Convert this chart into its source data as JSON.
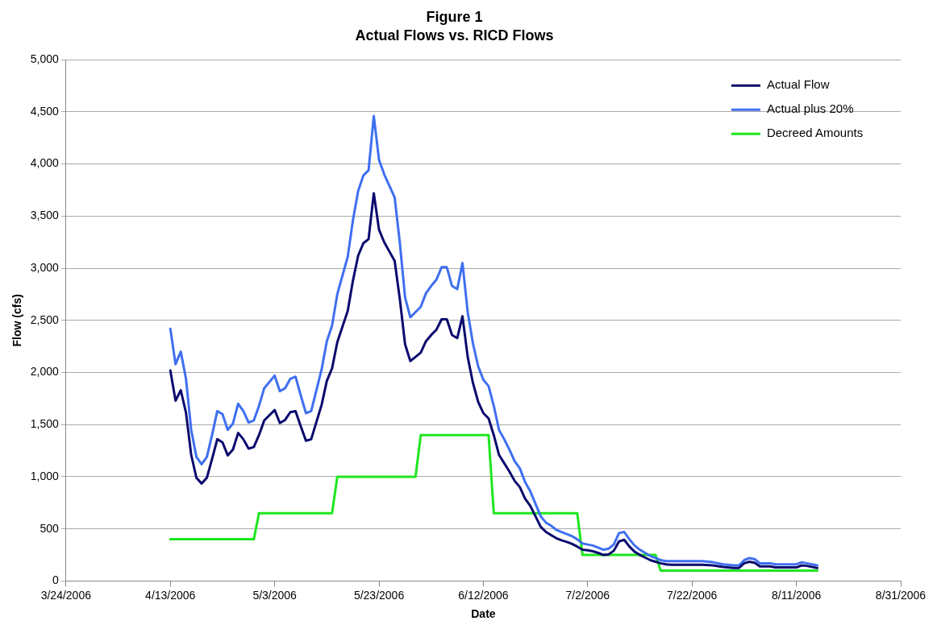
{
  "chart_data": {
    "type": "line",
    "title": "Figure 1",
    "subtitle": "Actual Flows vs. RICD Flows",
    "xlabel": "Date",
    "ylabel": "Flow (cfs)",
    "x": [
      "2006-04-13",
      "2006-04-14",
      "2006-04-15",
      "2006-04-16",
      "2006-04-17",
      "2006-04-18",
      "2006-04-19",
      "2006-04-20",
      "2006-04-21",
      "2006-04-22",
      "2006-04-23",
      "2006-04-24",
      "2006-04-25",
      "2006-04-26",
      "2006-04-27",
      "2006-04-28",
      "2006-04-29",
      "2006-04-30",
      "2006-05-01",
      "2006-05-03",
      "2006-05-04",
      "2006-05-05",
      "2006-05-06",
      "2006-05-07",
      "2006-05-08",
      "2006-05-09",
      "2006-05-10",
      "2006-05-12",
      "2006-05-13",
      "2006-05-14",
      "2006-05-15",
      "2006-05-16",
      "2006-05-17",
      "2006-05-18",
      "2006-05-19",
      "2006-05-20",
      "2006-05-21",
      "2006-05-22",
      "2006-05-23",
      "2006-05-24",
      "2006-05-25",
      "2006-05-26",
      "2006-05-27",
      "2006-05-28",
      "2006-05-29",
      "2006-05-30",
      "2006-05-31",
      "2006-06-01",
      "2006-06-02",
      "2006-06-03",
      "2006-06-04",
      "2006-06-05",
      "2006-06-06",
      "2006-06-07",
      "2006-06-08",
      "2006-06-09",
      "2006-06-10",
      "2006-06-11",
      "2006-06-12",
      "2006-06-13",
      "2006-06-14",
      "2006-06-15",
      "2006-06-16",
      "2006-06-17",
      "2006-06-18",
      "2006-06-19",
      "2006-06-20",
      "2006-06-21",
      "2006-06-22",
      "2006-06-23",
      "2006-06-24",
      "2006-06-25",
      "2006-06-26",
      "2006-06-27",
      "2006-06-28",
      "2006-06-29",
      "2006-06-30",
      "2006-07-01",
      "2006-07-02",
      "2006-07-03",
      "2006-07-04",
      "2006-07-05",
      "2006-07-06",
      "2006-07-07",
      "2006-07-08",
      "2006-07-09",
      "2006-07-10",
      "2006-07-11",
      "2006-07-12",
      "2006-07-13",
      "2006-07-14",
      "2006-07-15",
      "2006-07-16",
      "2006-07-17",
      "2006-07-18",
      "2006-07-21",
      "2006-07-24",
      "2006-07-26",
      "2006-07-28",
      "2006-07-30",
      "2006-07-31",
      "2006-08-01",
      "2006-08-02",
      "2006-08-03",
      "2006-08-04",
      "2006-08-05",
      "2006-08-06",
      "2006-08-07",
      "2006-08-10",
      "2006-08-11",
      "2006-08-12",
      "2006-08-13",
      "2006-08-15"
    ],
    "series": [
      {
        "name": "Actual Flow",
        "color": "#0a0a6e",
        "values": [
          2020,
          1730,
          1830,
          1615,
          1210,
          990,
          935,
          990,
          1170,
          1360,
          1330,
          1205,
          1260,
          1420,
          1360,
          1270,
          1285,
          1400,
          1540,
          1640,
          1515,
          1545,
          1620,
          1630,
          1485,
          1345,
          1360,
          1690,
          1920,
          2040,
          2290,
          2440,
          2590,
          2880,
          3120,
          3240,
          3280,
          3720,
          3370,
          3250,
          3160,
          3070,
          2700,
          2270,
          2110,
          2150,
          2190,
          2300,
          2360,
          2410,
          2510,
          2510,
          2360,
          2330,
          2540,
          2150,
          1900,
          1720,
          1610,
          1560,
          1400,
          1210,
          1130,
          1050,
          960,
          900,
          790,
          720,
          620,
          520,
          470,
          440,
          410,
          390,
          375,
          355,
          330,
          300,
          295,
          285,
          270,
          250,
          255,
          290,
          380,
          395,
          330,
          280,
          250,
          225,
          200,
          185,
          170,
          160,
          155,
          155,
          155,
          150,
          135,
          125,
          125,
          170,
          185,
          175,
          140,
          140,
          140,
          130,
          130,
          130,
          150,
          145,
          125
        ]
      },
      {
        "name": "Actual plus 20%",
        "color": "#3f6ff0",
        "values": [
          2420,
          2080,
          2200,
          1940,
          1450,
          1190,
          1120,
          1190,
          1400,
          1630,
          1600,
          1450,
          1510,
          1700,
          1630,
          1520,
          1540,
          1680,
          1850,
          1970,
          1820,
          1850,
          1940,
          1960,
          1780,
          1610,
          1630,
          2030,
          2300,
          2450,
          2750,
          2930,
          3110,
          3460,
          3740,
          3890,
          3940,
          4460,
          4040,
          3900,
          3790,
          3680,
          3240,
          2720,
          2530,
          2580,
          2630,
          2760,
          2830,
          2890,
          3010,
          3010,
          2830,
          2800,
          3050,
          2580,
          2280,
          2060,
          1930,
          1870,
          1680,
          1450,
          1360,
          1260,
          1150,
          1080,
          950,
          860,
          740,
          620,
          560,
          530,
          490,
          470,
          450,
          430,
          400,
          360,
          350,
          340,
          320,
          300,
          310,
          350,
          460,
          470,
          400,
          340,
          300,
          270,
          240,
          220,
          200,
          190,
          190,
          190,
          190,
          180,
          160,
          150,
          150,
          200,
          220,
          210,
          170,
          170,
          170,
          160,
          160,
          160,
          180,
          170,
          150
        ]
      },
      {
        "name": "Decreed Amounts",
        "color": "#1ee61e",
        "x": [
          "2006-04-13",
          "2006-04-29",
          "2006-04-30",
          "2006-05-14",
          "2006-05-15",
          "2006-05-30",
          "2006-05-31",
          "2006-06-13",
          "2006-06-14",
          "2006-06-30",
          "2006-07-01",
          "2006-07-15",
          "2006-07-16",
          "2006-08-15"
        ],
        "values": [
          400,
          400,
          650,
          650,
          1000,
          1000,
          1400,
          1400,
          650,
          650,
          250,
          250,
          100,
          100
        ]
      }
    ],
    "xlim": [
      "2006-03-24",
      "2006-08-31"
    ],
    "xticks": [
      {
        "value": "2006-03-24",
        "label": "3/24/2006"
      },
      {
        "value": "2006-04-13",
        "label": "4/13/2006"
      },
      {
        "value": "2006-05-03",
        "label": "5/3/2006"
      },
      {
        "value": "2006-05-23",
        "label": "5/23/2006"
      },
      {
        "value": "2006-06-12",
        "label": "6/12/2006"
      },
      {
        "value": "2006-07-02",
        "label": "7/2/2006"
      },
      {
        "value": "2006-07-22",
        "label": "7/22/2006"
      },
      {
        "value": "2006-08-11",
        "label": "8/11/2006"
      },
      {
        "value": "2006-08-31",
        "label": "8/31/2006"
      }
    ],
    "ylim": [
      0,
      5000
    ],
    "yticks": [
      {
        "value": 0,
        "label": "0"
      },
      {
        "value": 500,
        "label": "500"
      },
      {
        "value": 1000,
        "label": "1,000"
      },
      {
        "value": 1500,
        "label": "1,500"
      },
      {
        "value": 2000,
        "label": "2,000"
      },
      {
        "value": 2500,
        "label": "2,500"
      },
      {
        "value": 3000,
        "label": "3,000"
      },
      {
        "value": 3500,
        "label": "3,500"
      },
      {
        "value": 4000,
        "label": "4,000"
      },
      {
        "value": 4500,
        "label": "4,500"
      },
      {
        "value": 5000,
        "label": "5,000"
      }
    ],
    "grid": "y",
    "legend": "top right"
  }
}
